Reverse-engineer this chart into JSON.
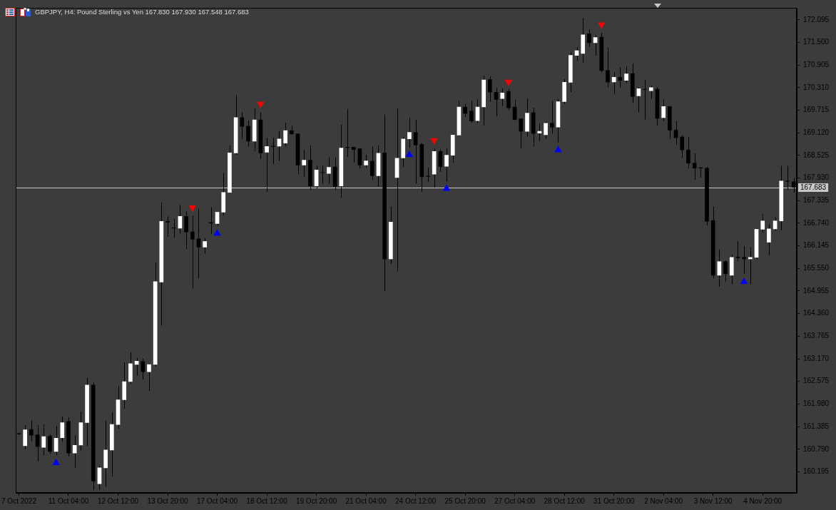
{
  "chart_data": {
    "type": "candlestick",
    "title": "GBPJPY, H4: Pound Sterling vs Yen 167.830 167.930 167.548 167.683",
    "categories": [
      "7 Oct 2022",
      null,
      null,
      null,
      null,
      null,
      null,
      null,
      "11 Oct 04:00",
      null,
      null,
      null,
      null,
      null,
      null,
      null,
      "12 Oct 12:00",
      null,
      null,
      null,
      null,
      null,
      null,
      null,
      "13 Oct 20:00",
      null,
      null,
      null,
      null,
      null,
      null,
      null,
      "17 Oct 04:00",
      null,
      null,
      null,
      null,
      null,
      null,
      null,
      "18 Oct 12:00",
      null,
      null,
      null,
      null,
      null,
      null,
      null,
      "19 Oct 20:00",
      null,
      null,
      null,
      null,
      null,
      null,
      null,
      "21 Oct 04:00",
      null,
      null,
      null,
      null,
      null,
      null,
      null,
      "24 Oct 12:00",
      null,
      null,
      null,
      null,
      null,
      null,
      null,
      "25 Oct 20:00",
      null,
      null,
      null,
      null,
      null,
      null,
      null,
      "27 Oct 04:00",
      null,
      null,
      null,
      null,
      null,
      null,
      null,
      "28 Oct 12:00",
      null,
      null,
      null,
      null,
      null,
      null,
      null,
      "31 Oct 20:00",
      null,
      null,
      null,
      null,
      null,
      null,
      null,
      "2 Nov 04:00",
      null,
      null,
      null,
      null,
      null,
      null,
      null,
      "3 Nov 12:00",
      null,
      null,
      null,
      null,
      null,
      null,
      null,
      "4 Nov 20:00",
      null,
      null,
      null,
      null,
      null
    ],
    "ohlc": [
      [
        161.2,
        161.22,
        161.17,
        161.19
      ],
      [
        160.88,
        161.42,
        160.79,
        161.3
      ],
      [
        161.31,
        161.55,
        161.0,
        161.16
      ],
      [
        161.17,
        161.42,
        160.47,
        160.86
      ],
      [
        160.84,
        161.44,
        160.63,
        161.12
      ],
      [
        161.13,
        161.18,
        160.67,
        160.73
      ],
      [
        160.73,
        161.41,
        160.63,
        161.08
      ],
      [
        161.09,
        161.65,
        160.99,
        161.49
      ],
      [
        161.52,
        161.63,
        160.6,
        160.69
      ],
      [
        160.69,
        161.15,
        160.3,
        160.89
      ],
      [
        160.9,
        161.77,
        160.76,
        161.49
      ],
      [
        161.49,
        162.67,
        160.88,
        162.48
      ],
      [
        162.48,
        162.56,
        159.71,
        159.95
      ],
      [
        159.88,
        160.35,
        159.72,
        160.3
      ],
      [
        160.3,
        161.54,
        159.8,
        160.77
      ],
      [
        160.77,
        161.76,
        160.08,
        161.44
      ],
      [
        161.44,
        162.45,
        161.32,
        162.09
      ],
      [
        162.09,
        163.08,
        161.86,
        162.57
      ],
      [
        162.57,
        163.34,
        162.51,
        163.04
      ],
      [
        163.02,
        163.19,
        162.73,
        163.11
      ],
      [
        163.1,
        163.17,
        162.63,
        162.83
      ],
      [
        162.83,
        163.05,
        162.32,
        163.02
      ],
      [
        163.02,
        165.7,
        162.97,
        165.2
      ],
      [
        165.19,
        167.29,
        164.04,
        166.79
      ],
      [
        166.79,
        166.92,
        166.38,
        166.77
      ],
      [
        166.62,
        166.85,
        166.36,
        166.61
      ],
      [
        166.61,
        167.22,
        166.47,
        166.92
      ],
      [
        166.92,
        167.05,
        166.06,
        166.51
      ],
      [
        166.51,
        166.94,
        165.02,
        166.32
      ],
      [
        166.33,
        167.12,
        165.29,
        166.11
      ],
      [
        166.11,
        166.35,
        165.94,
        166.26
      ],
      [
        166.76,
        167.16,
        166.46,
        166.74
      ],
      [
        166.73,
        167.03,
        166.67,
        167.03
      ],
      [
        167.03,
        168.06,
        166.95,
        167.55
      ],
      [
        167.55,
        168.79,
        167.53,
        168.59
      ],
      [
        168.59,
        170.12,
        168.54,
        169.52
      ],
      [
        169.52,
        169.66,
        168.95,
        169.29
      ],
      [
        169.29,
        169.44,
        168.76,
        168.9
      ],
      [
        168.9,
        169.76,
        168.64,
        169.46
      ],
      [
        169.46,
        169.66,
        168.43,
        168.59
      ],
      [
        168.61,
        168.98,
        167.57,
        168.76
      ],
      [
        168.77,
        168.99,
        168.3,
        168.76
      ],
      [
        168.77,
        169.16,
        168.38,
        168.96
      ],
      [
        168.85,
        169.38,
        168.76,
        169.18
      ],
      [
        169.18,
        169.31,
        169.07,
        169.09
      ],
      [
        169.09,
        169.1,
        168.03,
        168.27
      ],
      [
        168.27,
        168.67,
        167.97,
        168.4
      ],
      [
        168.4,
        168.79,
        167.62,
        167.72
      ],
      [
        167.72,
        168.25,
        167.65,
        168.14
      ],
      [
        168.08,
        168.25,
        167.78,
        168.07
      ],
      [
        168.05,
        168.47,
        167.78,
        168.21
      ],
      [
        168.22,
        168.47,
        167.62,
        167.71
      ],
      [
        167.72,
        169.34,
        167.41,
        168.72
      ],
      [
        168.74,
        169.75,
        168.48,
        168.73
      ],
      [
        168.74,
        168.74,
        168.34,
        168.68
      ],
      [
        168.7,
        168.7,
        168.19,
        168.27
      ],
      [
        168.27,
        168.54,
        168.2,
        168.38
      ],
      [
        168.37,
        168.76,
        167.88,
        167.99
      ],
      [
        167.99,
        168.78,
        167.71,
        168.58
      ],
      [
        168.59,
        169.6,
        164.95,
        165.8
      ],
      [
        165.8,
        167.18,
        165.67,
        166.77
      ],
      [
        167.94,
        169.76,
        165.47,
        168.45
      ],
      [
        168.46,
        169.01,
        168.22,
        168.96
      ],
      [
        168.96,
        169.52,
        168.73,
        169.13
      ],
      [
        169.13,
        169.46,
        167.78,
        168.8
      ],
      [
        168.81,
        168.85,
        167.57,
        167.96
      ],
      [
        167.98,
        168.2,
        167.83,
        167.97
      ],
      [
        168.03,
        168.7,
        167.68,
        168.63
      ],
      [
        168.63,
        168.68,
        168.09,
        168.23
      ],
      [
        168.24,
        168.7,
        167.83,
        168.53
      ],
      [
        168.53,
        169.08,
        168.34,
        169.06
      ],
      [
        169.06,
        169.97,
        169.04,
        169.8
      ],
      [
        169.8,
        169.88,
        169.54,
        169.63
      ],
      [
        169.69,
        169.97,
        169.38,
        169.43
      ],
      [
        169.44,
        170.0,
        169.38,
        169.8
      ],
      [
        169.8,
        170.62,
        169.31,
        170.51
      ],
      [
        170.52,
        170.6,
        169.94,
        170.19
      ],
      [
        170.19,
        170.3,
        169.55,
        170.0
      ],
      [
        170.02,
        170.29,
        169.83,
        170.17
      ],
      [
        170.21,
        170.28,
        169.72,
        169.78
      ],
      [
        169.8,
        169.99,
        169.45,
        169.47
      ],
      [
        169.49,
        169.49,
        168.71,
        169.16
      ],
      [
        169.16,
        170.02,
        169.02,
        169.64
      ],
      [
        169.65,
        169.78,
        168.77,
        169.1
      ],
      [
        169.11,
        169.37,
        168.9,
        169.16
      ],
      [
        169.07,
        169.41,
        168.96,
        169.37
      ],
      [
        169.37,
        169.95,
        169.1,
        169.27
      ],
      [
        169.27,
        170.01,
        168.87,
        169.94
      ],
      [
        169.94,
        170.53,
        169.88,
        170.45
      ],
      [
        170.45,
        171.24,
        170.19,
        171.16
      ],
      [
        171.16,
        171.37,
        171.02,
        171.28
      ],
      [
        171.21,
        172.14,
        170.96,
        171.7
      ],
      [
        171.73,
        171.84,
        171.38,
        171.49
      ],
      [
        171.49,
        171.69,
        171.15,
        171.63
      ],
      [
        171.64,
        171.75,
        170.71,
        170.76
      ],
      [
        170.76,
        171.36,
        170.32,
        170.46
      ],
      [
        170.46,
        170.72,
        170.15,
        170.58
      ],
      [
        170.58,
        170.84,
        170.31,
        170.5
      ],
      [
        170.5,
        170.87,
        170.43,
        170.67
      ],
      [
        170.68,
        170.95,
        169.91,
        170.08
      ],
      [
        170.09,
        170.31,
        169.66,
        170.28
      ],
      [
        170.27,
        170.51,
        169.47,
        170.26
      ],
      [
        170.23,
        170.36,
        170.01,
        170.31
      ],
      [
        170.27,
        170.32,
        169.32,
        169.5
      ],
      [
        169.52,
        170.0,
        169.43,
        169.81
      ],
      [
        169.81,
        169.81,
        168.95,
        169.19
      ],
      [
        169.19,
        169.43,
        168.8,
        168.99
      ],
      [
        169.01,
        169.05,
        168.47,
        168.67
      ],
      [
        168.67,
        169.02,
        168.19,
        168.32
      ],
      [
        168.32,
        168.58,
        167.88,
        168.19
      ],
      [
        168.2,
        168.22,
        167.94,
        168.19
      ],
      [
        168.19,
        168.22,
        166.69,
        166.79
      ],
      [
        166.81,
        167.18,
        165.29,
        165.37
      ],
      [
        165.37,
        166.05,
        165.07,
        165.73
      ],
      [
        165.73,
        165.76,
        165.2,
        165.41
      ],
      [
        165.37,
        165.91,
        165.13,
        165.84
      ],
      [
        165.85,
        166.27,
        165.74,
        165.83
      ],
      [
        165.84,
        166.14,
        165.41,
        165.8
      ],
      [
        165.8,
        166.1,
        165.13,
        165.84
      ],
      [
        165.84,
        166.61,
        165.79,
        166.58
      ],
      [
        166.58,
        166.98,
        166.5,
        166.8
      ],
      [
        166.24,
        166.72,
        165.9,
        166.59
      ],
      [
        166.59,
        166.9,
        166.54,
        166.8
      ],
      [
        166.8,
        168.25,
        166.56,
        167.85
      ],
      [
        167.85,
        168.25,
        167.62,
        167.84
      ],
      [
        167.83,
        167.93,
        167.548,
        167.683
      ]
    ],
    "color": "#000000",
    "colors": [
      "#000000",
      "#ffffff",
      "#000000",
      "#000000",
      "#ffffff",
      "#000000",
      "#ffffff",
      "#ffffff",
      "#000000",
      "#ffffff",
      "#ffffff",
      "#ffffff",
      "#000000",
      "#ffffff",
      "#ffffff",
      "#ffffff",
      "#ffffff",
      "#ffffff",
      "#ffffff",
      "#ffffff",
      "#000000",
      "#ffffff",
      "#ffffff",
      "#ffffff",
      "#000000",
      "#000000",
      "#ffffff",
      "#000000",
      "#000000",
      "#000000",
      "#ffffff",
      "#000000",
      "#ffffff",
      "#ffffff",
      "#ffffff",
      "#ffffff",
      "#000000",
      "#000000",
      "#ffffff",
      "#000000",
      "#ffffff",
      "#000000",
      "#ffffff",
      "#ffffff",
      "#000000",
      "#000000",
      "#ffffff",
      "#000000",
      "#ffffff",
      "#000000",
      "#ffffff",
      "#000000",
      "#ffffff",
      "#000000",
      "#000000",
      "#000000",
      "#ffffff",
      "#000000",
      "#ffffff",
      "#000000",
      "#ffffff",
      "#ffffff",
      "#ffffff",
      "#ffffff",
      "#000000",
      "#000000",
      "#000000",
      "#ffffff",
      "#000000",
      "#ffffff",
      "#ffffff",
      "#ffffff",
      "#000000",
      "#000000",
      "#ffffff",
      "#ffffff",
      "#000000",
      "#000000",
      "#ffffff",
      "#000000",
      "#000000",
      "#000000",
      "#ffffff",
      "#000000",
      "#ffffff",
      "#ffffff",
      "#000000",
      "#ffffff",
      "#ffffff",
      "#ffffff",
      "#ffffff",
      "#ffffff",
      "#000000",
      "#ffffff",
      "#000000",
      "#000000",
      "#ffffff",
      "#000000",
      "#ffffff",
      "#000000",
      "#ffffff",
      "#000000",
      "#ffffff",
      "#000000",
      "#ffffff",
      "#000000",
      "#000000",
      "#000000",
      "#000000",
      "#000000",
      "#000000",
      "#000000",
      "#000000",
      "#ffffff",
      "#000000",
      "#ffffff",
      "#000000",
      "#000000",
      "#ffffff",
      "#ffffff",
      "#ffffff",
      "#ffffff",
      "#ffffff",
      "#ffffff",
      "#000000",
      "#000000"
    ],
    "series": [
      {
        "type": "scatter",
        "color": "#ff0000",
        "marker": "triangle",
        "values": [
          null,
          null,
          null,
          null,
          null,
          null,
          null,
          null,
          null,
          null,
          null,
          null,
          null,
          null,
          null,
          null,
          null,
          null,
          null,
          null,
          null,
          null,
          null,
          null,
          null,
          null,
          null,
          null,
          167.15,
          null,
          null,
          null,
          null,
          null,
          null,
          null,
          null,
          null,
          null,
          169.88,
          null,
          null,
          null,
          null,
          null,
          null,
          null,
          null,
          null,
          null,
          null,
          null,
          null,
          null,
          null,
          null,
          null,
          null,
          null,
          null,
          null,
          null,
          null,
          null,
          null,
          null,
          null,
          168.92,
          null,
          null,
          null,
          null,
          null,
          null,
          null,
          null,
          null,
          null,
          null,
          170.46,
          null,
          null,
          null,
          null,
          null,
          null,
          null,
          null,
          null,
          null,
          null,
          null,
          null,
          null,
          171.97,
          null,
          null,
          null,
          null,
          null,
          null,
          null,
          null,
          null,
          null,
          null,
          null,
          null,
          null,
          null,
          null,
          null,
          null,
          null,
          null,
          null,
          null,
          null,
          null,
          null,
          null,
          null,
          null,
          null,
          null,
          null
        ]
      },
      {
        "type": "scatter",
        "color": "#0000ff",
        "marker": "triangle",
        "values": [
          null,
          null,
          null,
          null,
          null,
          null,
          160.43,
          null,
          null,
          null,
          null,
          null,
          null,
          null,
          null,
          null,
          null,
          null,
          null,
          null,
          null,
          null,
          null,
          null,
          null,
          null,
          null,
          null,
          null,
          null,
          null,
          null,
          166.47,
          null,
          null,
          null,
          null,
          null,
          null,
          null,
          null,
          null,
          null,
          null,
          null,
          null,
          null,
          null,
          null,
          null,
          null,
          null,
          null,
          null,
          null,
          null,
          null,
          null,
          null,
          null,
          null,
          null,
          null,
          168.54,
          null,
          null,
          null,
          null,
          null,
          167.65,
          null,
          null,
          null,
          null,
          null,
          null,
          null,
          null,
          null,
          null,
          null,
          null,
          null,
          null,
          null,
          null,
          null,
          168.67,
          null,
          null,
          null,
          null,
          null,
          null,
          null,
          null,
          null,
          null,
          null,
          null,
          null,
          null,
          null,
          null,
          null,
          null,
          null,
          null,
          null,
          null,
          null,
          null,
          null,
          null,
          null,
          null,
          null,
          165.2,
          null,
          null,
          null,
          null,
          null,
          null,
          null,
          null
        ]
      }
    ],
    "ylim": [
      159.64,
      172.41
    ],
    "yticks": [
      160.195,
      {
        "value": 160.79,
        "label": "160.790"
      },
      161.385,
      {
        "value": 161.98,
        "label": "161.980"
      },
      162.575,
      {
        "value": 163.17,
        "label": "163.170"
      },
      163.765,
      {
        "value": 164.36,
        "label": "164.360"
      },
      164.955,
      {
        "value": 165.55,
        "label": "165.550"
      },
      166.145,
      {
        "value": 166.74,
        "label": "166.740"
      },
      167.335,
      {
        "value": 167.93,
        "label": "167.930"
      },
      168.525,
      {
        "value": 169.12,
        "label": "169.120"
      },
      169.715,
      {
        "value": 170.31,
        "label": "170.310"
      },
      170.905,
      {
        "value": 171.5,
        "label": "171.500"
      },
      172.095
    ],
    "ref_lines": [
      {
        "axis": "y",
        "value": 167.683,
        "label": "167.683",
        "color": "#c8c8c8"
      }
    ]
  }
}
